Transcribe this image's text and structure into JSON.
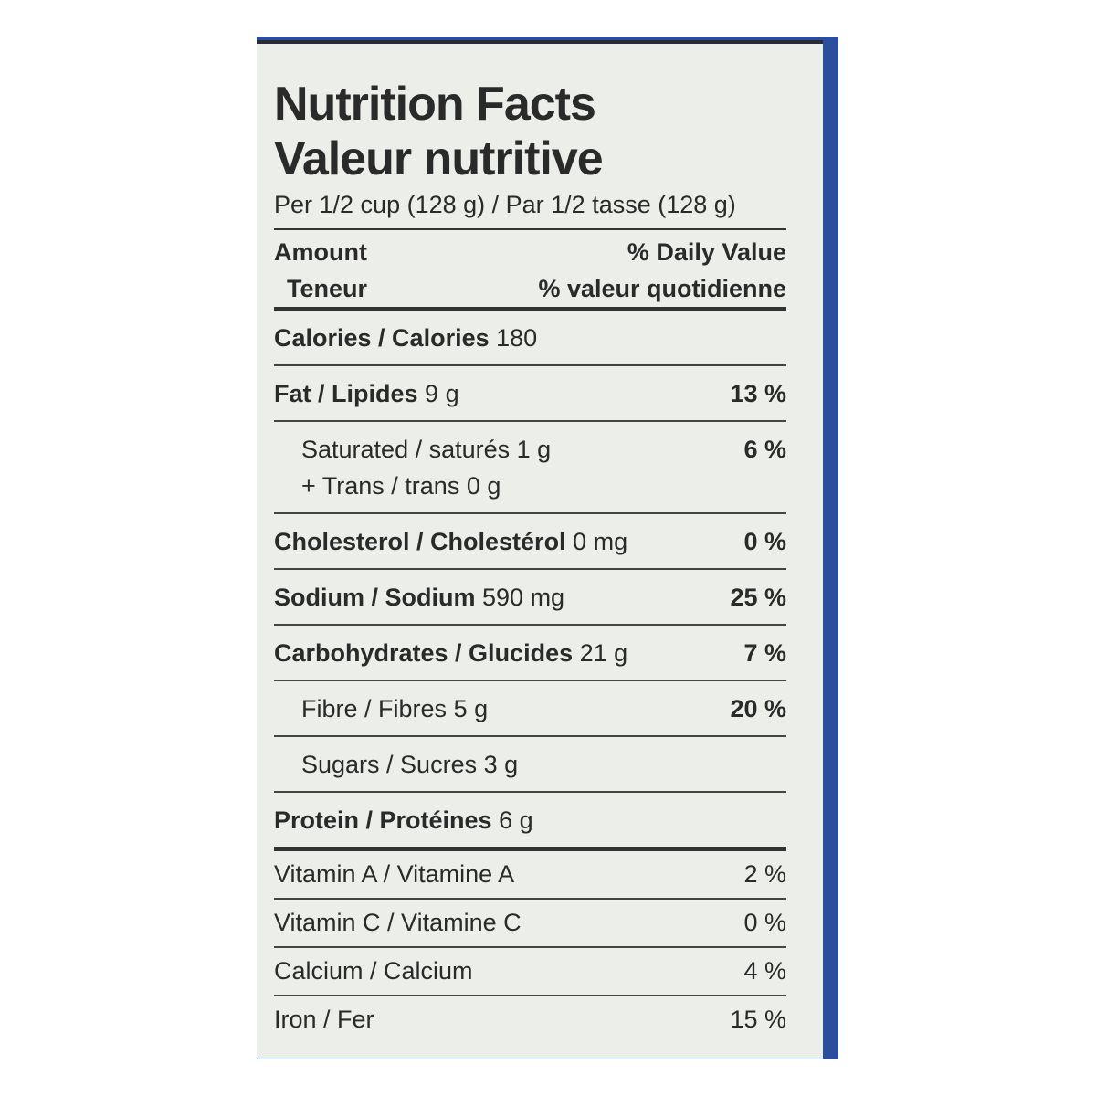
{
  "header": {
    "title": "Nutrition Facts",
    "title_fr": "Valeur nutritive",
    "serving": "Per 1/2 cup (128 g) / Par 1/2 tasse (128 g)"
  },
  "columns": {
    "amount": "Amount",
    "amount_fr": "Teneur",
    "dv": "% Daily Value",
    "dv_fr": "% valeur quotidienne"
  },
  "rows": [
    {
      "name": "Calories / Calories",
      "amount": "180"
    },
    {
      "name": "Fat / Lipides",
      "amount": "9 g",
      "dv": "13 %",
      "sub": [
        [
          {
            "name": "Saturated / saturés",
            "amount": "1 g",
            "dv": "6 %"
          },
          {
            "name": "+ Trans / trans",
            "amount": "0 g"
          }
        ]
      ]
    },
    {
      "name": "Cholesterol / Cholestérol",
      "amount": "0 mg",
      "dv": "0 %"
    },
    {
      "name": "Sodium / Sodium",
      "amount": "590 mg",
      "dv": "25 %"
    },
    {
      "name": "Carbohydrates / Glucides",
      "amount": "21 g",
      "dv": "7 %",
      "sub": [
        [
          {
            "name": "Fibre / Fibres",
            "amount": "5 g",
            "dv": "20 %"
          }
        ],
        [
          {
            "name": "Sugars / Sucres",
            "amount": "3 g"
          }
        ]
      ]
    },
    {
      "name": "Protein / Protéines",
      "amount": "6 g"
    }
  ],
  "vitamins": [
    {
      "name": "Vitamin A / Vitamine A",
      "dv": "2 %"
    },
    {
      "name": "Vitamin C / Vitamine C",
      "dv": "0 %"
    },
    {
      "name": "Calcium / Calcium",
      "dv": "4 %"
    },
    {
      "name": "Iron / Fer",
      "dv": "15 %"
    }
  ]
}
